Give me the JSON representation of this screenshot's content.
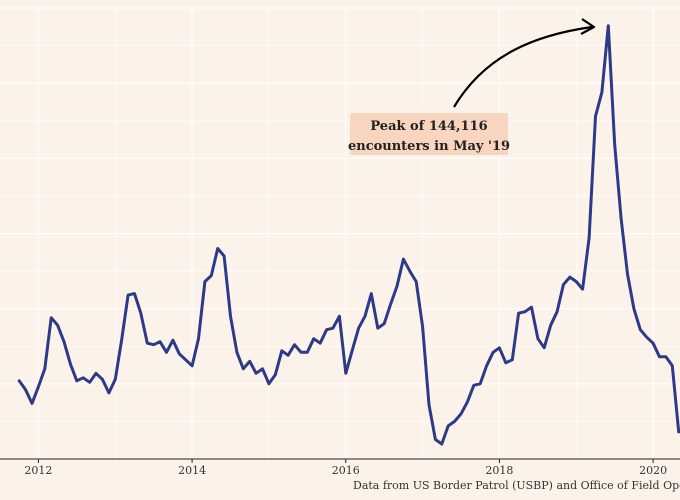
{
  "chart_data": {
    "type": "line",
    "title": "",
    "xlabel": "",
    "ylabel": "",
    "xlim": [
      2011.5,
      2020.35
    ],
    "ylim": [
      0,
      150000
    ],
    "x_ticks": [
      2012,
      2014,
      2016,
      2018,
      2020
    ],
    "x_tick_labels": [
      "2012",
      "2014",
      "2016",
      "2018",
      "2020"
    ],
    "grid": true,
    "legend": "none",
    "series": [
      {
        "color": "#2e3a87",
        "x": [
          2011.75,
          2011.833,
          2011.917,
          2012.0,
          2012.083,
          2012.167,
          2012.25,
          2012.333,
          2012.417,
          2012.5,
          2012.583,
          2012.667,
          2012.75,
          2012.833,
          2012.917,
          2013.0,
          2013.083,
          2013.167,
          2013.25,
          2013.333,
          2013.417,
          2013.5,
          2013.583,
          2013.667,
          2013.75,
          2013.833,
          2013.917,
          2014.0,
          2014.083,
          2014.167,
          2014.25,
          2014.333,
          2014.417,
          2014.5,
          2014.583,
          2014.667,
          2014.75,
          2014.833,
          2014.917,
          2015.0,
          2015.083,
          2015.167,
          2015.25,
          2015.333,
          2015.417,
          2015.5,
          2015.583,
          2015.667,
          2015.75,
          2015.833,
          2015.917,
          2016.0,
          2016.083,
          2016.167,
          2016.25,
          2016.333,
          2016.417,
          2016.5,
          2016.583,
          2016.667,
          2016.75,
          2016.833,
          2016.917,
          2017.0,
          2017.083,
          2017.167,
          2017.25,
          2017.333,
          2017.417,
          2017.5,
          2017.583,
          2017.667,
          2017.75,
          2017.833,
          2017.917,
          2018.0,
          2018.083,
          2018.167,
          2018.25,
          2018.333,
          2018.417,
          2018.5,
          2018.583,
          2018.667,
          2018.75,
          2018.833,
          2018.917,
          2019.0,
          2019.083,
          2019.167,
          2019.25,
          2019.333,
          2019.417,
          2019.5,
          2019.583,
          2019.667,
          2019.75,
          2019.833,
          2019.917,
          2020.0,
          2020.083,
          2020.167,
          2020.25,
          2020.333
        ],
        "values": [
          26000,
          23000,
          18500,
          24000,
          30000,
          47000,
          44500,
          39000,
          31500,
          26000,
          27000,
          25500,
          28500,
          26500,
          22000,
          26500,
          39500,
          54500,
          55000,
          48500,
          38500,
          38000,
          39000,
          35500,
          39500,
          35000,
          33000,
          31000,
          40000,
          59000,
          61000,
          70000,
          67500,
          47500,
          35500,
          30000,
          32500,
          28500,
          30000,
          25000,
          28000,
          36000,
          34500,
          38000,
          35500,
          35500,
          40000,
          38500,
          43000,
          43500,
          47500,
          28500,
          36000,
          43500,
          47500,
          55000,
          43500,
          45000,
          51500,
          57500,
          66500,
          62500,
          59000,
          44000,
          18000,
          6500,
          5000,
          11000,
          12500,
          15000,
          19000,
          24500,
          25000,
          31000,
          35500,
          37000,
          32000,
          33000,
          48500,
          49000,
          50500,
          40000,
          37000,
          44500,
          49000,
          58000,
          60500,
          59000,
          56500,
          73500,
          114000,
          122000,
          144116,
          104500,
          80000,
          61500,
          50000,
          43000,
          40500,
          38500,
          34000,
          34000,
          31000,
          9000
        ]
      }
    ],
    "annotation": {
      "line1": "Peak of 144,116",
      "line2": "encounters in May '19",
      "box_color": "#f7d5bf",
      "arrow_color": "#000000"
    },
    "caption": "Data from US Border Patrol (USBP) and Office of Field Operations"
  }
}
